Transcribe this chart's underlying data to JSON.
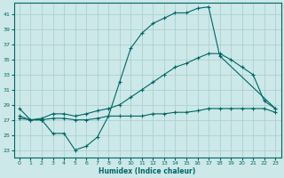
{
  "xlabel": "Humidex (Indice chaleur)",
  "xlim": [
    -0.5,
    23.5
  ],
  "ylim": [
    22,
    42.5
  ],
  "yticks": [
    23,
    25,
    27,
    29,
    31,
    33,
    35,
    37,
    39,
    41
  ],
  "xticks": [
    0,
    1,
    2,
    3,
    4,
    5,
    6,
    7,
    8,
    9,
    10,
    11,
    12,
    13,
    14,
    15,
    16,
    17,
    18,
    19,
    20,
    21,
    22,
    23
  ],
  "bg_color": "#cce8e8",
  "line_color": "#006666",
  "grid_color": "#a8cccc",
  "line1_x": [
    0,
    1,
    2,
    3,
    4,
    5,
    6,
    7,
    8,
    9,
    10,
    11,
    12,
    13,
    14,
    15,
    16,
    17,
    18,
    23
  ],
  "line1_y": [
    28.5,
    27.0,
    27.0,
    25.2,
    25.2,
    23.0,
    23.5,
    24.7,
    27.5,
    32.0,
    36.5,
    38.5,
    39.8,
    40.5,
    41.2,
    41.2,
    41.8,
    42.0,
    35.5,
    28.5
  ],
  "line2_x": [
    0,
    1,
    2,
    3,
    4,
    5,
    6,
    7,
    8,
    9,
    10,
    11,
    12,
    13,
    14,
    15,
    16,
    17,
    18,
    19,
    20,
    21,
    22,
    23
  ],
  "line2_y": [
    27.5,
    27.0,
    27.2,
    27.8,
    27.8,
    27.5,
    27.8,
    28.2,
    28.5,
    29.0,
    30.0,
    31.0,
    32.0,
    33.0,
    34.0,
    34.5,
    35.2,
    35.8,
    35.8,
    35.0,
    34.0,
    33.0,
    29.5,
    28.5
  ],
  "line3_x": [
    0,
    1,
    2,
    3,
    4,
    5,
    6,
    7,
    8,
    9,
    10,
    11,
    12,
    13,
    14,
    15,
    16,
    17,
    18,
    19,
    20,
    21,
    22,
    23
  ],
  "line3_y": [
    27.2,
    27.0,
    27.0,
    27.2,
    27.2,
    27.0,
    27.0,
    27.2,
    27.5,
    27.5,
    27.5,
    27.5,
    27.8,
    27.8,
    28.0,
    28.0,
    28.2,
    28.5,
    28.5,
    28.5,
    28.5,
    28.5,
    28.5,
    28.0
  ]
}
